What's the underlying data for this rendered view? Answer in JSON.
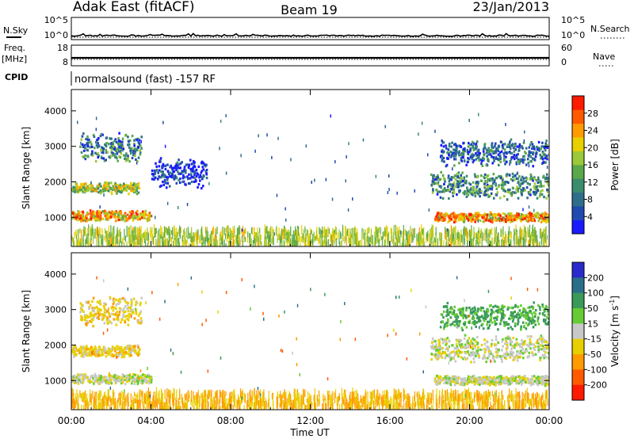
{
  "header": {
    "station": "Adak East (fitACF)",
    "beam": "Beam 19",
    "date": "23/Jan/2013"
  },
  "strips": {
    "nsky": {
      "label": "N.Sky",
      "ticks": [
        "10^5",
        "10^0"
      ]
    },
    "nsearch": {
      "label": "N.Search",
      "ticks": [
        "10^5",
        "10^0"
      ]
    },
    "freq": {
      "label_line1": "Freq.",
      "label_line2": "[MHz]",
      "ticks": [
        "18",
        "8"
      ]
    },
    "nave": {
      "label": "Nave",
      "ticks": [
        "60",
        "0"
      ]
    },
    "cpid": {
      "label": "CPID",
      "text": "normalsound (fast) -157 RF"
    }
  },
  "chart_data": [
    {
      "type": "heatmap",
      "quantity": "power",
      "xlabel": "",
      "ylabel": "Slant Range [km]",
      "x_ticks": [
        "00:00",
        "04:00",
        "08:00",
        "12:00",
        "16:00",
        "20:00",
        "00:00"
      ],
      "x_range_hours": [
        0,
        24
      ],
      "y_ticks": [
        1000,
        2000,
        3000,
        4000
      ],
      "ylim": [
        180,
        4600
      ],
      "colorbar": {
        "label": "Power [dB]",
        "ticks": [
          4,
          8,
          12,
          16,
          20,
          24,
          28
        ],
        "range": [
          0,
          32
        ],
        "colors": [
          "#1a1aff",
          "#1f4ab0",
          "#2f6e8a",
          "#3a8c6e",
          "#5aa84a",
          "#9cc83a",
          "#e8d000",
          "#ff9a00",
          "#ff5a00",
          "#ff1a00"
        ]
      },
      "features": [
        {
          "name": "morning lower band",
          "start_hr": 0,
          "end_hr": 4.0,
          "range_km": [
            880,
            1200
          ],
          "power_db": 26
        },
        {
          "name": "morning upper band",
          "start_hr": 0,
          "end_hr": 3.4,
          "range_km": [
            1650,
            2000
          ],
          "power_db": 20
        },
        {
          "name": "morning high band",
          "start_hr": 0.4,
          "end_hr": 3.5,
          "range_km": [
            2500,
            3400
          ],
          "power_db": 12
        },
        {
          "name": "dusk tail",
          "start_hr": 4.0,
          "end_hr": 6.8,
          "range_km": [
            1800,
            2700
          ],
          "power_db": 6
        },
        {
          "name": "evening lower band",
          "start_hr": 18.2,
          "end_hr": 24,
          "range_km": [
            850,
            1150
          ],
          "power_db": 27
        },
        {
          "name": "evening upper band",
          "start_hr": 18.0,
          "end_hr": 24,
          "range_km": [
            1500,
            2300
          ],
          "power_db": 14
        },
        {
          "name": "evening high band",
          "start_hr": 18.5,
          "end_hr": 24,
          "range_km": [
            2400,
            3200
          ],
          "power_db": 10
        },
        {
          "name": "ground clutter",
          "start_hr": 0,
          "end_hr": 24,
          "range_km": [
            200,
            650
          ],
          "power_db": 18
        }
      ]
    },
    {
      "type": "heatmap",
      "quantity": "velocity",
      "xlabel": "Time UT",
      "ylabel": "Slant Range [km]",
      "x_ticks": [
        "00:00",
        "04:00",
        "08:00",
        "12:00",
        "16:00",
        "20:00",
        "00:00"
      ],
      "x_range_hours": [
        0,
        24
      ],
      "y_ticks": [
        1000,
        2000,
        3000,
        4000
      ],
      "ylim": [
        180,
        4600
      ],
      "colorbar": {
        "label": "Velocity [m s-1]",
        "ticks": [
          "200",
          "100",
          "50",
          "15",
          "-15",
          "-50",
          "-100",
          "-200"
        ],
        "colors": [
          "#2a2acc",
          "#2a6f8a",
          "#3a9a5a",
          "#66cc33",
          "#c8c8c8",
          "#e8d000",
          "#ff9a00",
          "#ff5a00",
          "#ff1a00"
        ]
      },
      "features": [
        {
          "name": "morning lower band",
          "start_hr": 0,
          "end_hr": 4.0,
          "range_km": [
            880,
            1200
          ],
          "velocity": 0
        },
        {
          "name": "morning upper band",
          "start_hr": 0,
          "end_hr": 3.4,
          "range_km": [
            1650,
            2000
          ],
          "velocity": -30
        },
        {
          "name": "morning high band",
          "start_hr": 0.4,
          "end_hr": 3.5,
          "range_km": [
            2500,
            3400
          ],
          "velocity": -30
        },
        {
          "name": "evening lower band",
          "start_hr": 18.2,
          "end_hr": 24,
          "range_km": [
            850,
            1150
          ],
          "velocity": 0
        },
        {
          "name": "evening upper band",
          "start_hr": 18.0,
          "end_hr": 24,
          "range_km": [
            1500,
            2300
          ],
          "velocity": 0
        },
        {
          "name": "evening high band",
          "start_hr": 18.5,
          "end_hr": 24,
          "range_km": [
            2400,
            3200
          ],
          "velocity": 60
        },
        {
          "name": "ground clutter",
          "start_hr": 0,
          "end_hr": 24,
          "range_km": [
            200,
            650
          ],
          "velocity": -50
        }
      ]
    }
  ]
}
